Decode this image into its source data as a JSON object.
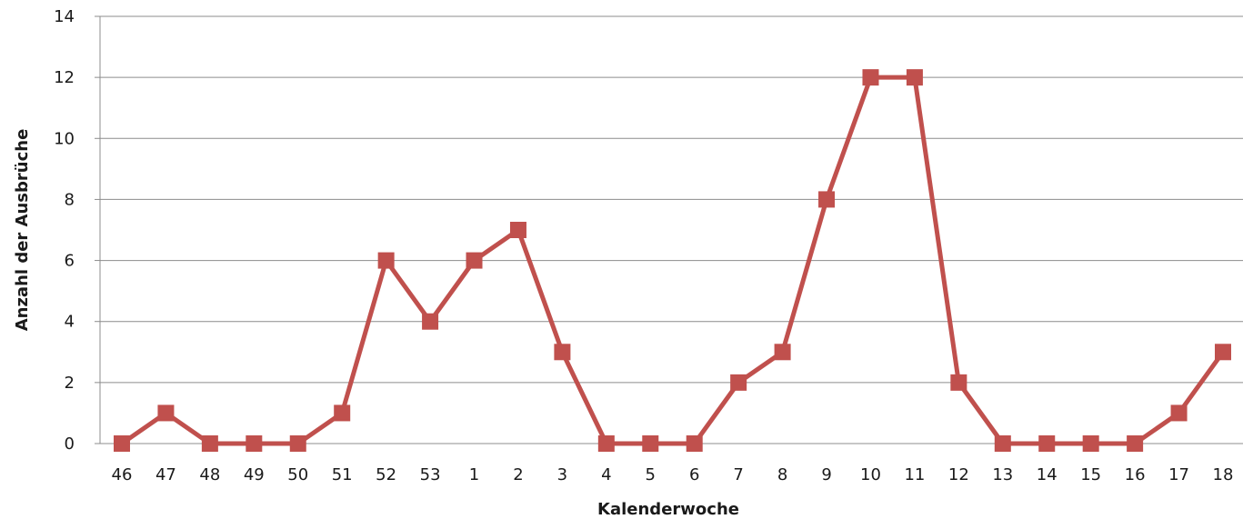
{
  "chart_data": {
    "type": "line",
    "title": "",
    "xlabel": "Kalenderwoche",
    "ylabel": "Anzahl der Ausbrüche",
    "categories": [
      "46",
      "47",
      "48",
      "49",
      "50",
      "51",
      "52",
      "53",
      "1",
      "2",
      "3",
      "4",
      "5",
      "6",
      "7",
      "8",
      "9",
      "10",
      "11",
      "12",
      "13",
      "14",
      "15",
      "16",
      "17",
      "18"
    ],
    "series": [
      {
        "values": [
          0,
          1,
          0,
          0,
          0,
          1,
          6,
          4,
          6,
          7,
          3,
          0,
          0,
          0,
          2,
          3,
          8,
          12,
          12,
          2,
          0,
          0,
          0,
          0,
          1,
          3
        ],
        "color": "#c0504d",
        "marker": "square"
      }
    ],
    "ylim": [
      0,
      14
    ],
    "yticks": [
      0,
      2,
      4,
      6,
      8,
      10,
      12,
      14
    ],
    "grid": true,
    "legend": "none"
  }
}
